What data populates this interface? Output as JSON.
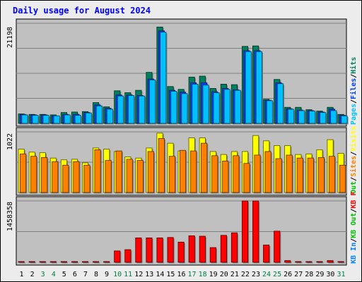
{
  "chart_data": {
    "type": "bar",
    "title": "Daily usage for August 2024",
    "colors": {
      "frame_bg": "#ececec",
      "plot_bg": "#c0c0c0",
      "title": "#0000ff",
      "hits": "#00805c",
      "files": "#0040ff",
      "pages": "#00c0ff",
      "visits": "#ffff00",
      "sites": "#ff8000",
      "kbin": "#0080ff",
      "kbout": "#00c000",
      "kbf": "#ff0000",
      "weekend": "#008040",
      "weekday": "#000000"
    },
    "days": [
      "1",
      "2",
      "3",
      "4",
      "5",
      "6",
      "7",
      "8",
      "9",
      "10",
      "11",
      "12",
      "13",
      "14",
      "15",
      "16",
      "17",
      "18",
      "19",
      "20",
      "21",
      "22",
      "23",
      "24",
      "25",
      "26",
      "27",
      "28",
      "29",
      "30",
      "31"
    ],
    "weekend_days": [
      "3",
      "4",
      "10",
      "11",
      "17",
      "18",
      "24",
      "25",
      "31"
    ],
    "panels": [
      {
        "ymax_label": "21198",
        "ymax": 21198,
        "legend": [
          {
            "text": "Hits",
            "color": "#00805c"
          },
          {
            "text": "/",
            "color": "#000000"
          },
          {
            "text": "Files",
            "color": "#0040ff"
          },
          {
            "text": "/",
            "color": "#000000"
          },
          {
            "text": "Pages",
            "color": "#00c0ff"
          }
        ],
        "series": [
          {
            "name": "Hits",
            "color": "#00805c",
            "values": [
              2000,
              1900,
              1900,
              1800,
              2300,
              2400,
              2500,
              4400,
              3500,
              6900,
              6500,
              7000,
              10800,
              20400,
              7800,
              7200,
              9800,
              10000,
              7400,
              8300,
              8200,
              16300,
              16400,
              5100,
              9300,
              3400,
              3400,
              2900,
              2600,
              3400,
              1900
            ]
          },
          {
            "name": "Files",
            "color": "#0040ff",
            "values": [
              1900,
              1800,
              1800,
              1600,
              1900,
              1900,
              2300,
              3900,
              3200,
              6000,
              6000,
              5900,
              9400,
              19600,
              7000,
              6600,
              8600,
              8600,
              6700,
              7400,
              7100,
              15400,
              15400,
              4900,
              8600,
              3100,
              2800,
              2700,
              2400,
              3000,
              1700
            ]
          },
          {
            "name": "Pages",
            "color": "#00c0ff",
            "values": [
              1800,
              1700,
              1700,
              1600,
              1800,
              1700,
              2200,
              3700,
              3000,
              5800,
              5900,
              5800,
              9200,
              19300,
              6800,
              6300,
              8300,
              8100,
              6500,
              7200,
              7000,
              15200,
              15200,
              4800,
              8400,
              3000,
              2700,
              2600,
              2300,
              2700,
              1600
            ]
          }
        ]
      },
      {
        "ymax_label": "1022",
        "ymax": 1022,
        "legend": [
          {
            "text": "Visits",
            "color": "#ffff00"
          },
          {
            "text": "/",
            "color": "#000000"
          },
          {
            "text": "Sites",
            "color": "#ff8000"
          },
          {
            "text": "/",
            "color": "#000000"
          },
          {
            "text": "Out",
            "color": "#00c000"
          }
        ],
        "series": [
          {
            "name": "Visits",
            "color": "#ffff00",
            "values": [
              730,
              680,
              670,
              580,
              550,
              560,
              500,
              750,
              730,
              690,
              600,
              580,
              750,
              1000,
              830,
              700,
              920,
              920,
              690,
              640,
              690,
              690,
              960,
              870,
              790,
              790,
              640,
              650,
              720,
              890,
              660
            ]
          },
          {
            "name": "Sites",
            "color": "#ff8000",
            "values": [
              650,
              610,
              590,
              520,
              460,
              520,
              460,
              720,
              540,
              700,
              560,
              540,
              690,
              910,
              610,
              710,
              700,
              830,
              620,
              530,
              620,
              490,
              630,
              690,
              570,
              630,
              580,
              580,
              590,
              610,
              460
            ]
          }
        ]
      },
      {
        "ymax_label": "1458358",
        "ymax": 1458358,
        "legend": [
          {
            "text": "KB F",
            "color": "#ff0000"
          },
          {
            "text": "/",
            "color": "#000000"
          },
          {
            "text": "KB Out",
            "color": "#00c000"
          },
          {
            "text": "/",
            "color": "#000000"
          },
          {
            "text": "KB In",
            "color": "#0080ff"
          }
        ],
        "series": [
          {
            "name": "KB F",
            "color": "#ff0000",
            "values": [
              15000,
              15000,
              15000,
              15000,
              15000,
              15000,
              15000,
              15000,
              15000,
              270000,
              300000,
              580000,
              580000,
              580000,
              590000,
              480000,
              630000,
              620000,
              350000,
              640000,
              700000,
              1458358,
              1458358,
              410000,
              740000,
              40000,
              15000,
              15000,
              15000,
              40000,
              15000
            ]
          }
        ]
      }
    ]
  }
}
